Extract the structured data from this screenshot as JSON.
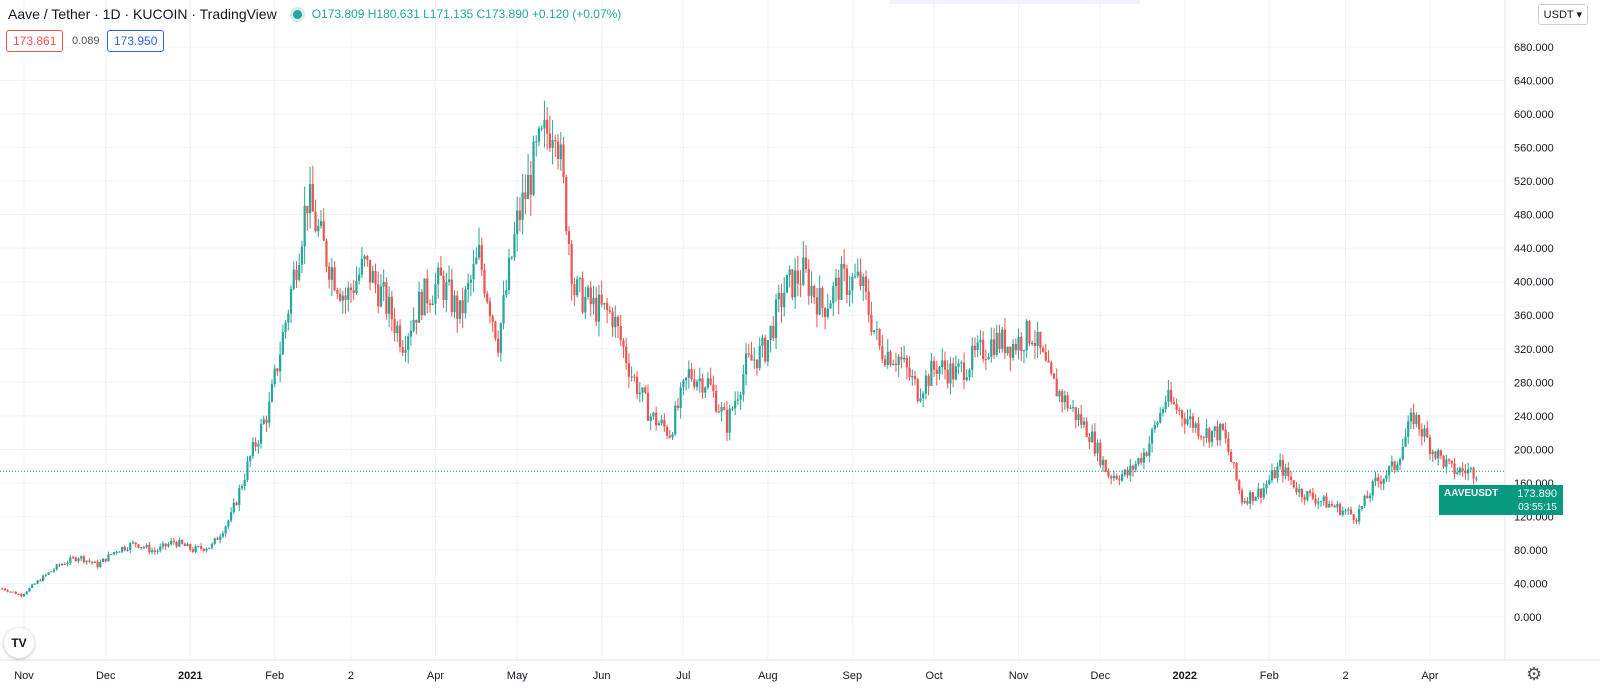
{
  "header": {
    "title": "Aave / Tether · 1D · KUCOIN · TradingView",
    "ohlc": "O173.809 H180.631 L171.135 C173.890 +0.120 (+0.07%)"
  },
  "trade_buttons": {
    "sell": "173.861",
    "spread": "0.089",
    "buy": "173.950"
  },
  "currency_select": "USDT ▾",
  "logo_text": "TV",
  "price_tag": {
    "symbol": "AAVEUSDT",
    "price": "173.890",
    "countdown": "03:55:15"
  },
  "settings_icon": "gear-icon",
  "colors": {
    "up": "#26a69a",
    "down": "#ef5350",
    "grid": "#f0f3fa",
    "axis_text": "#131722",
    "tag": "#089981"
  },
  "chart_data": {
    "type": "candlestick",
    "ylim": [
      -10,
      700
    ],
    "y_ticks": [
      0,
      40,
      80,
      120,
      160,
      200,
      240,
      280,
      320,
      360,
      400,
      440,
      480,
      520,
      560,
      600,
      640,
      680
    ],
    "y_tick_labels": [
      "0.000",
      "40.000",
      "80.000",
      "120.000",
      "160.000",
      "200.000",
      "240.000",
      "280.000",
      "320.000",
      "360.000",
      "400.000",
      "440.000",
      "480.000",
      "520.000",
      "560.000",
      "600.000",
      "640.000",
      "680.000"
    ],
    "x_tick_labels": [
      "Nov",
      "Dec",
      "2021",
      "Feb",
      "2",
      "Apr",
      "May",
      "Jun",
      "Jul",
      "Aug",
      "Sep",
      "Oct",
      "Nov",
      "Dec",
      "2022",
      "Feb",
      "2",
      "Apr"
    ],
    "x_tick_dates": [
      "2020-11-01",
      "2020-12-01",
      "2021-01-01",
      "2021-02-01",
      "2021-03-01",
      "2021-04-01",
      "2021-05-01",
      "2021-06-01",
      "2021-07-01",
      "2021-08-01",
      "2021-09-01",
      "2021-10-01",
      "2021-11-01",
      "2021-12-01",
      "2022-01-01",
      "2022-02-01",
      "2022-03-01",
      "2022-04-01"
    ],
    "last_price": 173.89,
    "grid": true,
    "closes_weekly": [
      [
        "2020-10-24",
        34
      ],
      [
        "2020-10-31",
        26
      ],
      [
        "2020-11-07",
        45
      ],
      [
        "2020-11-14",
        62
      ],
      [
        "2020-11-21",
        72
      ],
      [
        "2020-11-28",
        62
      ],
      [
        "2020-12-05",
        80
      ],
      [
        "2020-12-12",
        88
      ],
      [
        "2020-12-19",
        78
      ],
      [
        "2020-12-26",
        90
      ],
      [
        "2021-01-02",
        80
      ],
      [
        "2021-01-09",
        85
      ],
      [
        "2021-01-16",
        120
      ],
      [
        "2021-01-23",
        190
      ],
      [
        "2021-01-30",
        250
      ],
      [
        "2021-02-06",
        370
      ],
      [
        "2021-02-13",
        500
      ],
      [
        "2021-02-20",
        430
      ],
      [
        "2021-02-27",
        380
      ],
      [
        "2021-03-06",
        420
      ],
      [
        "2021-03-13",
        380
      ],
      [
        "2021-03-20",
        330
      ],
      [
        "2021-03-27",
        380
      ],
      [
        "2021-04-03",
        400
      ],
      [
        "2021-04-10",
        360
      ],
      [
        "2021-04-17",
        430
      ],
      [
        "2021-04-24",
        330
      ],
      [
        "2021-05-01",
        470
      ],
      [
        "2021-05-08",
        550
      ],
      [
        "2021-05-15",
        600
      ],
      [
        "2021-05-22",
        390
      ],
      [
        "2021-05-29",
        370
      ],
      [
        "2021-06-05",
        360
      ],
      [
        "2021-06-12",
        290
      ],
      [
        "2021-06-19",
        240
      ],
      [
        "2021-06-26",
        220
      ],
      [
        "2021-07-03",
        290
      ],
      [
        "2021-07-10",
        280
      ],
      [
        "2021-07-17",
        230
      ],
      [
        "2021-07-24",
        300
      ],
      [
        "2021-07-31",
        320
      ],
      [
        "2021-08-07",
        390
      ],
      [
        "2021-08-14",
        410
      ],
      [
        "2021-08-21",
        370
      ],
      [
        "2021-08-28",
        400
      ],
      [
        "2021-09-04",
        400
      ],
      [
        "2021-09-11",
        320
      ],
      [
        "2021-09-18",
        310
      ],
      [
        "2021-09-25",
        270
      ],
      [
        "2021-10-02",
        300
      ],
      [
        "2021-10-09",
        290
      ],
      [
        "2021-10-16",
        310
      ],
      [
        "2021-10-23",
        330
      ],
      [
        "2021-10-30",
        325
      ],
      [
        "2021-11-06",
        340
      ],
      [
        "2021-11-13",
        280
      ],
      [
        "2021-11-20",
        250
      ],
      [
        "2021-11-27",
        220
      ],
      [
        "2021-12-04",
        170
      ],
      [
        "2021-12-11",
        170
      ],
      [
        "2021-12-18",
        200
      ],
      [
        "2021-12-25",
        260
      ],
      [
        "2022-01-01",
        240
      ],
      [
        "2022-01-08",
        220
      ],
      [
        "2022-01-15",
        220
      ],
      [
        "2022-01-22",
        140
      ],
      [
        "2022-01-29",
        150
      ],
      [
        "2022-02-05",
        180
      ],
      [
        "2022-02-12",
        150
      ],
      [
        "2022-02-19",
        140
      ],
      [
        "2022-02-26",
        130
      ],
      [
        "2022-03-05",
        120
      ],
      [
        "2022-03-12",
        160
      ],
      [
        "2022-03-19",
        180
      ],
      [
        "2022-03-26",
        240
      ],
      [
        "2022-04-02",
        200
      ],
      [
        "2022-04-09",
        175
      ],
      [
        "2022-04-16",
        174
      ]
    ]
  }
}
